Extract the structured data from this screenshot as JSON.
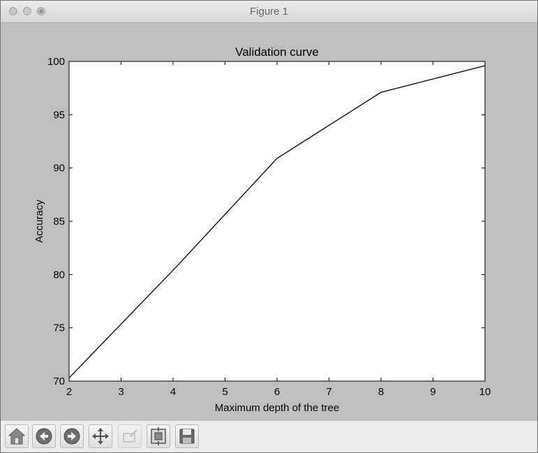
{
  "window": {
    "title": "Figure 1"
  },
  "chart_data": {
    "type": "line",
    "title": "Validation curve",
    "xlabel": "Maximum depth of the tree",
    "ylabel": "Accuracy",
    "xlim": [
      2,
      10
    ],
    "ylim": [
      70,
      100
    ],
    "xticks": [
      2,
      3,
      4,
      5,
      6,
      7,
      8,
      9,
      10
    ],
    "yticks": [
      70,
      75,
      80,
      85,
      90,
      95,
      100
    ],
    "grid": false,
    "series": [
      {
        "color": "#000000",
        "x": [
          2,
          4,
          6,
          8,
          10
        ],
        "y": [
          70.3,
          80.4,
          90.9,
          97.1,
          99.6
        ]
      }
    ]
  },
  "toolbar": {
    "buttons": [
      {
        "name": "home-button",
        "icon": "home-icon"
      },
      {
        "name": "back-button",
        "icon": "back-arrow-icon"
      },
      {
        "name": "forward-button",
        "icon": "forward-arrow-icon"
      },
      {
        "name": "pan-button",
        "icon": "move-arrows-icon"
      },
      {
        "name": "zoom-button",
        "icon": "zoom-rect-icon"
      },
      {
        "name": "subplots-button",
        "icon": "subplots-config-icon"
      },
      {
        "name": "save-button",
        "icon": "floppy-disk-icon"
      }
    ]
  }
}
